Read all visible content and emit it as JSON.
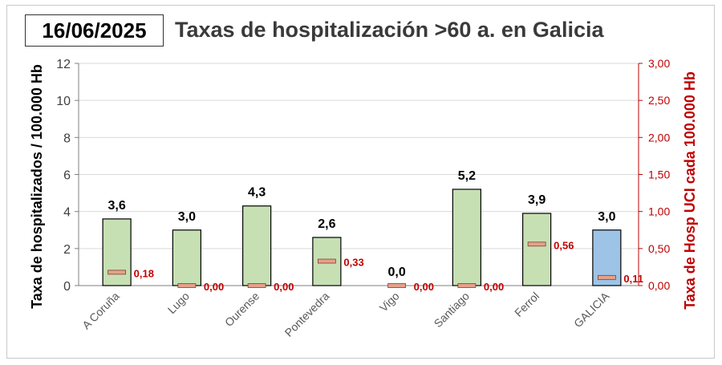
{
  "date_label": "16/06/2025",
  "chart_data": {
    "type": "bar",
    "title": "Taxas de hospitalización >60 a. en Galicia",
    "ylabel": "Taxa de hospitalizados / 100.000 Hb",
    "y2label": "Taxa de Hosp UCI cada 100.000 Hb",
    "ylim": [
      0,
      12
    ],
    "y2lim": [
      0,
      3
    ],
    "yticks": [
      "0",
      "2",
      "4",
      "6",
      "8",
      "10",
      "12"
    ],
    "y2ticks": [
      "0,00",
      "0,50",
      "1,00",
      "1,50",
      "2,00",
      "2,50",
      "3,00"
    ],
    "grid": true,
    "categories": [
      "A Coruña",
      "Lugo",
      "Ourense",
      "Pontevedra",
      "Vigo",
      "Santiago",
      "Ferrol",
      "GALICIA"
    ],
    "series": [
      {
        "axis": "left",
        "values": [
          3.6,
          3.0,
          4.3,
          2.6,
          0.0,
          5.2,
          3.9,
          3.0
        ],
        "labels": [
          "3,6",
          "3,0",
          "4,3",
          "2,6",
          "0,0",
          "5,2",
          "3,9",
          "3,0"
        ]
      },
      {
        "axis": "right",
        "values": [
          0.18,
          0.0,
          0.0,
          0.33,
          0.0,
          0.0,
          0.56,
          0.11
        ],
        "labels": [
          "0,18",
          "0,00",
          "0,00",
          "0,33",
          "0,00",
          "0,00",
          "0,56",
          "0,11"
        ]
      }
    ],
    "colors": {
      "bar": "#c6e0b4",
      "bar_total": "#9dc3e6",
      "marker": "#e6a18a",
      "right_axis": "#c00000",
      "grid": "#d9d9d9"
    }
  }
}
